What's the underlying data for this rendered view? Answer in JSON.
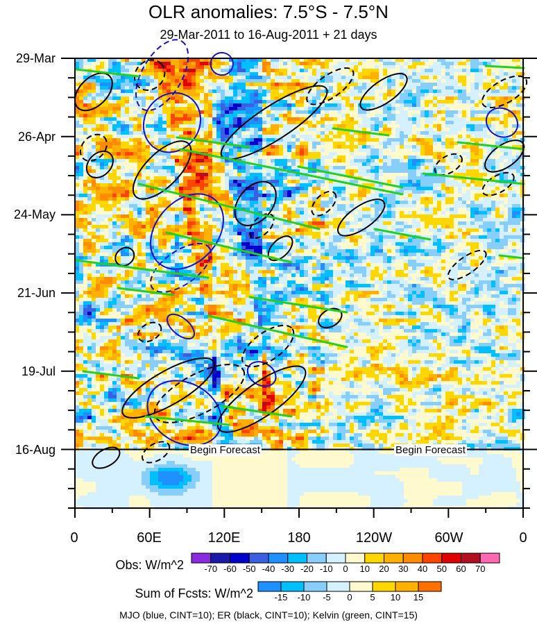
{
  "chart_data": {
    "type": "heatmap",
    "title": "OLR anomalies: 7.5°S - 7.5°N",
    "subtitle": "29-Mar-2011 to 16-Aug-2011 + 21 days",
    "x_ticks": [
      "0",
      "60E",
      "120E",
      "180",
      "120W",
      "60W",
      "0"
    ],
    "x_tick_lon": [
      0,
      60,
      120,
      180,
      240,
      300,
      360
    ],
    "xlim": [
      0,
      360
    ],
    "y_ticks": [
      "29-Mar",
      "26-Apr",
      "24-May",
      "21-Jun",
      "19-Jul",
      "16-Aug"
    ],
    "y_tick_day": [
      0,
      28,
      56,
      84,
      112,
      140
    ],
    "ylim_days": [
      0,
      161
    ],
    "forecast_start_day": 140,
    "forecast_label": "Begin Forecast",
    "obs_colorbar": {
      "title": "Obs: W/m^2",
      "labels": [
        "-70",
        "-60",
        "-50",
        "-40",
        "-30",
        "-20",
        "-10",
        "0",
        "10",
        "20",
        "30",
        "40",
        "50",
        "60",
        "70"
      ],
      "colors": [
        "#8a2be2",
        "#1a1aa8",
        "#0000cd",
        "#3a5fe0",
        "#1e90ff",
        "#00bfff",
        "#87cefa",
        "#d5f0ff",
        "#fffacd",
        "#ffd700",
        "#ffb000",
        "#ff8c00",
        "#ff4500",
        "#e00000",
        "#b01020",
        "#ff69b4"
      ]
    },
    "fcst_colorbar": {
      "title": "Sum of Fcsts: W/m^2",
      "labels": [
        "-15",
        "-10",
        "-5",
        "0",
        "5",
        "10",
        "15"
      ],
      "colors": [
        "#1e90ff",
        "#00bfff",
        "#87cefa",
        "#d5f0ff",
        "#fffacd",
        "#ffd700",
        "#ffb000",
        "#ff7000"
      ]
    },
    "contour_legend": "MJO (blue, CINT=10); ER (black, CINT=10); Kelvin (green, CINT=15)",
    "contours": {
      "mjo": [
        {
          "lon": 70,
          "day": 6,
          "rlon": 16,
          "rday": 14,
          "rot": -60,
          "dash": true
        },
        {
          "lon": 78,
          "day": 23,
          "rlon": 22,
          "rday": 11,
          "rot": -55,
          "dash": false
        },
        {
          "lon": 90,
          "day": 62,
          "rlon": 34,
          "rday": 11,
          "rot": -48,
          "dash": false
        },
        {
          "lon": 88,
          "day": 127,
          "rlon": 24,
          "rday": 14,
          "rot": 30,
          "dash": false
        },
        {
          "lon": 118,
          "day": 2,
          "rlon": 9,
          "rday": 4,
          "rot": 10,
          "dash": false
        },
        {
          "lon": 343,
          "day": 23,
          "rlon": 13,
          "rday": 5,
          "rot": 30,
          "dash": false
        },
        {
          "lon": 85,
          "day": 75,
          "rlon": 28,
          "rday": 6,
          "rot": -35,
          "dash": true
        },
        {
          "lon": 85,
          "day": 96,
          "rlon": 13,
          "rday": 3,
          "rot": 40,
          "dash": false
        },
        {
          "lon": 150,
          "day": 113,
          "rlon": 12,
          "rday": 4,
          "rot": 30,
          "dash": false
        }
      ],
      "er": [
        {
          "lon": 15,
          "day": 12,
          "rlon": 18,
          "rday": 5,
          "rot": -45,
          "dash": false
        },
        {
          "lon": 60,
          "day": 6,
          "rlon": 13,
          "rday": 5,
          "rot": -45,
          "dash": true
        },
        {
          "lon": 160,
          "day": 23,
          "rlon": 50,
          "rday": 6,
          "rot": -33,
          "dash": false
        },
        {
          "lon": 205,
          "day": 10,
          "rlon": 22,
          "rday": 4,
          "rot": -35,
          "dash": true
        },
        {
          "lon": 248,
          "day": 12,
          "rlon": 22,
          "rday": 4,
          "rot": -35,
          "dash": false
        },
        {
          "lon": 70,
          "day": 40,
          "rlon": 30,
          "rday": 6,
          "rot": -45,
          "dash": false
        },
        {
          "lon": 20,
          "day": 38,
          "rlon": 12,
          "rday": 4,
          "rot": -45,
          "dash": false
        },
        {
          "lon": 15,
          "day": 32,
          "rlon": 12,
          "rday": 4,
          "rot": -45,
          "dash": true
        },
        {
          "lon": 145,
          "day": 52,
          "rlon": 20,
          "rday": 6,
          "rot": -50,
          "dash": false
        },
        {
          "lon": 150,
          "day": 60,
          "rlon": 12,
          "rday": 3,
          "rot": -45,
          "dash": true
        },
        {
          "lon": 165,
          "day": 68,
          "rlon": 12,
          "rday": 3,
          "rot": -45,
          "dash": false
        },
        {
          "lon": 200,
          "day": 52,
          "rlon": 12,
          "rday": 3,
          "rot": -45,
          "dash": true
        },
        {
          "lon": 230,
          "day": 57,
          "rlon": 22,
          "rday": 4,
          "rot": -35,
          "dash": false
        },
        {
          "lon": 315,
          "day": 74,
          "rlon": 18,
          "rday": 3,
          "rot": -35,
          "dash": true
        },
        {
          "lon": 40,
          "day": 71,
          "rlon": 8,
          "rday": 3,
          "rot": -40,
          "dash": false
        },
        {
          "lon": 340,
          "day": 45,
          "rlon": 14,
          "rday": 3,
          "rot": -30,
          "dash": true
        },
        {
          "lon": 345,
          "day": 35,
          "rlon": 18,
          "rday": 4,
          "rot": -35,
          "dash": false
        },
        {
          "lon": 345,
          "day": 12,
          "rlon": 20,
          "rday": 4,
          "rot": -30,
          "dash": true
        },
        {
          "lon": 300,
          "day": 38,
          "rlon": 12,
          "rday": 3,
          "rot": -30,
          "dash": true
        },
        {
          "lon": 75,
          "day": 118,
          "rlon": 42,
          "rday": 6,
          "rot": -30,
          "dash": false
        },
        {
          "lon": 150,
          "day": 122,
          "rlon": 42,
          "rday": 6,
          "rot": -35,
          "dash": false
        },
        {
          "lon": 155,
          "day": 103,
          "rlon": 24,
          "rday": 5,
          "rot": -35,
          "dash": true
        },
        {
          "lon": 205,
          "day": 93,
          "rlon": 10,
          "rday": 3,
          "rot": -30,
          "dash": false
        },
        {
          "lon": 60,
          "day": 98,
          "rlon": 10,
          "rday": 3,
          "rot": -30,
          "dash": true
        },
        {
          "lon": 25,
          "day": 143,
          "rlon": 12,
          "rday": 3,
          "rot": -30,
          "dash": false
        },
        {
          "lon": 65,
          "day": 141,
          "rlon": 12,
          "rday": 3,
          "rot": -30,
          "dash": true
        },
        {
          "lon": 100,
          "day": 120,
          "rlon": 40,
          "rday": 7,
          "rot": -28,
          "dash": true
        }
      ],
      "kelvin": [
        {
          "x1": 255,
          "y1": 198,
          "x2": 360,
          "y2": 212
        },
        {
          "x1": 260,
          "y1": 215,
          "x2": 580,
          "y2": 280
        },
        {
          "x1": 430,
          "y1": 240,
          "x2": 580,
          "y2": 270
        },
        {
          "x1": 200,
          "y1": 265,
          "x2": 460,
          "y2": 330
        },
        {
          "x1": 480,
          "y1": 185,
          "x2": 560,
          "y2": 195
        },
        {
          "x1": 540,
          "y1": 330,
          "x2": 620,
          "y2": 345
        },
        {
          "x1": 110,
          "y1": 375,
          "x2": 300,
          "y2": 400
        },
        {
          "x1": 240,
          "y1": 335,
          "x2": 420,
          "y2": 378
        },
        {
          "x1": 360,
          "y1": 428,
          "x2": 500,
          "y2": 450
        },
        {
          "x1": 300,
          "y1": 455,
          "x2": 500,
          "y2": 500
        },
        {
          "x1": 320,
          "y1": 585,
          "x2": 420,
          "y2": 600
        },
        {
          "x1": 210,
          "y1": 600,
          "x2": 330,
          "y2": 612
        },
        {
          "x1": 110,
          "y1": 100,
          "x2": 200,
          "y2": 110
        },
        {
          "x1": 660,
          "y1": 205,
          "x2": 755,
          "y2": 215
        },
        {
          "x1": 610,
          "y1": 250,
          "x2": 755,
          "y2": 265
        },
        {
          "x1": 720,
          "y1": 368,
          "x2": 755,
          "y2": 372
        },
        {
          "x1": 120,
          "y1": 535,
          "x2": 200,
          "y2": 545
        },
        {
          "x1": 700,
          "y1": 95,
          "x2": 755,
          "y2": 98
        },
        {
          "x1": 170,
          "y1": 415,
          "x2": 250,
          "y2": 425
        }
      ]
    }
  }
}
